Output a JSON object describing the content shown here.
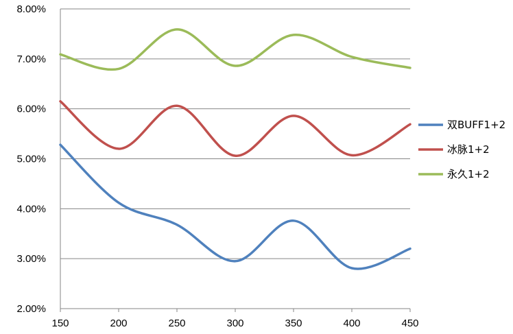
{
  "chart_data": {
    "type": "line",
    "smooth": true,
    "x": [
      150,
      200,
      250,
      300,
      350,
      400,
      450
    ],
    "x_tick_labels": [
      "150",
      "200",
      "250",
      "300",
      "350",
      "400",
      "450"
    ],
    "y_tick_labels": [
      "2.00%",
      "3.00%",
      "4.00%",
      "5.00%",
      "6.00%",
      "7.00%",
      "8.00%"
    ],
    "xlim": [
      150,
      450
    ],
    "ylim": [
      2.0,
      8.0
    ],
    "y_unit": "%",
    "grid": "horizontal",
    "legend_position": "right",
    "series": [
      {
        "name": "双BUFF1+2",
        "color": "#4F81BD",
        "values": [
          5.28,
          4.12,
          3.68,
          2.95,
          3.76,
          2.81,
          3.2
        ]
      },
      {
        "name": "冰脉1+2",
        "color": "#C0504D",
        "values": [
          6.15,
          5.2,
          6.06,
          5.06,
          5.86,
          5.07,
          5.69
        ]
      },
      {
        "name": "永久1+2",
        "color": "#9BBB59",
        "values": [
          7.09,
          6.8,
          7.59,
          6.86,
          7.48,
          7.04,
          6.82
        ]
      }
    ]
  }
}
